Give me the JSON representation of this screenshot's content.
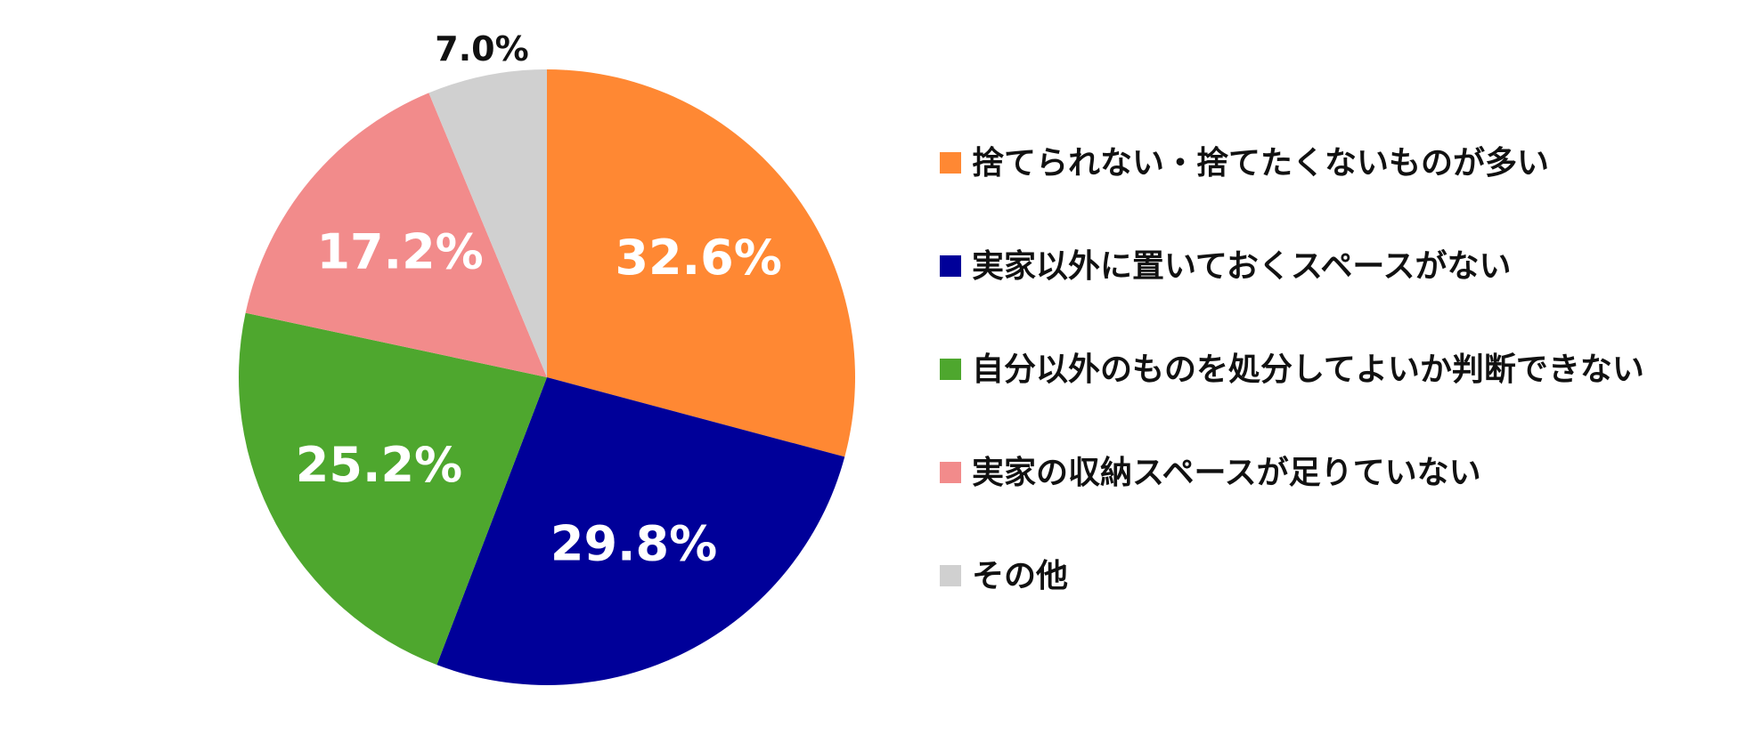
{
  "chart_data": {
    "type": "pie",
    "categories": [
      "捨てられない・捨てたくないものが多い",
      "実家以外に置いておくスペースがない",
      "自分以外のものを処分してよいか判断できない",
      "実家の収納スペースが足りていない",
      "その他"
    ],
    "values": [
      32.6,
      29.8,
      25.2,
      17.2,
      7.0
    ],
    "value_labels": [
      "32.6%",
      "29.8%",
      "25.2%",
      "17.2%",
      "7.0%"
    ],
    "colors": [
      "#ff8833",
      "#000099",
      "#4ea72e",
      "#f28b8b",
      "#d0d0d0"
    ],
    "legend": "right"
  }
}
